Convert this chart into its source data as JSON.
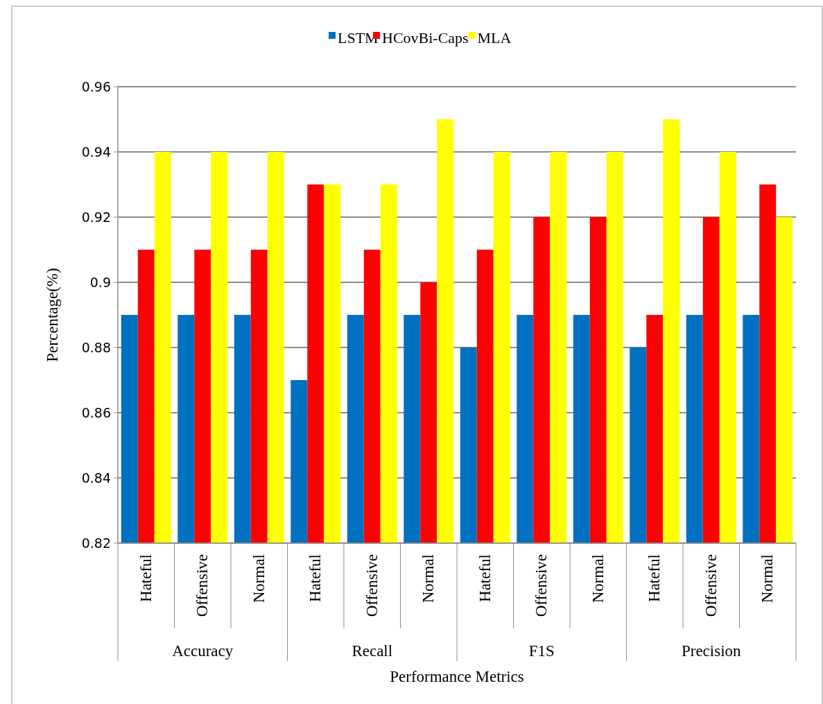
{
  "chart_data": {
    "type": "bar",
    "xlabel": "Performance Metrics",
    "ylabel": "Percentage(%)",
    "categories": [
      "Hateful",
      "Offensive",
      "Normal",
      "Hateful",
      "Offensive",
      "Normal",
      "Hateful",
      "Offensive",
      "Normal",
      "Hateful",
      "Offensive",
      "Normal"
    ],
    "annotations": [
      "Accuracy",
      "Recall",
      "F1S",
      "Precision"
    ],
    "series": [
      {
        "name": "LSTM",
        "color": "#0070c0",
        "values": [
          0.89,
          0.89,
          0.89,
          0.87,
          0.89,
          0.89,
          0.88,
          0.89,
          0.89,
          0.88,
          0.89,
          0.89
        ]
      },
      {
        "name": "HCovBi-Caps",
        "color": "#ff0000",
        "values": [
          0.91,
          0.91,
          0.91,
          0.93,
          0.91,
          0.9,
          0.91,
          0.92,
          0.92,
          0.89,
          0.92,
          0.93
        ]
      },
      {
        "name": "MLA",
        "color": "#ffff00",
        "values": [
          0.94,
          0.94,
          0.94,
          0.93,
          0.93,
          0.95,
          0.94,
          0.94,
          0.94,
          0.95,
          0.94,
          0.92
        ]
      }
    ],
    "ylim": [
      0.82,
      0.96
    ],
    "yticks": [
      0.82,
      0.84,
      0.86,
      0.88,
      0.9,
      0.92,
      0.94,
      0.96
    ],
    "grid": "y",
    "legend": "top"
  }
}
